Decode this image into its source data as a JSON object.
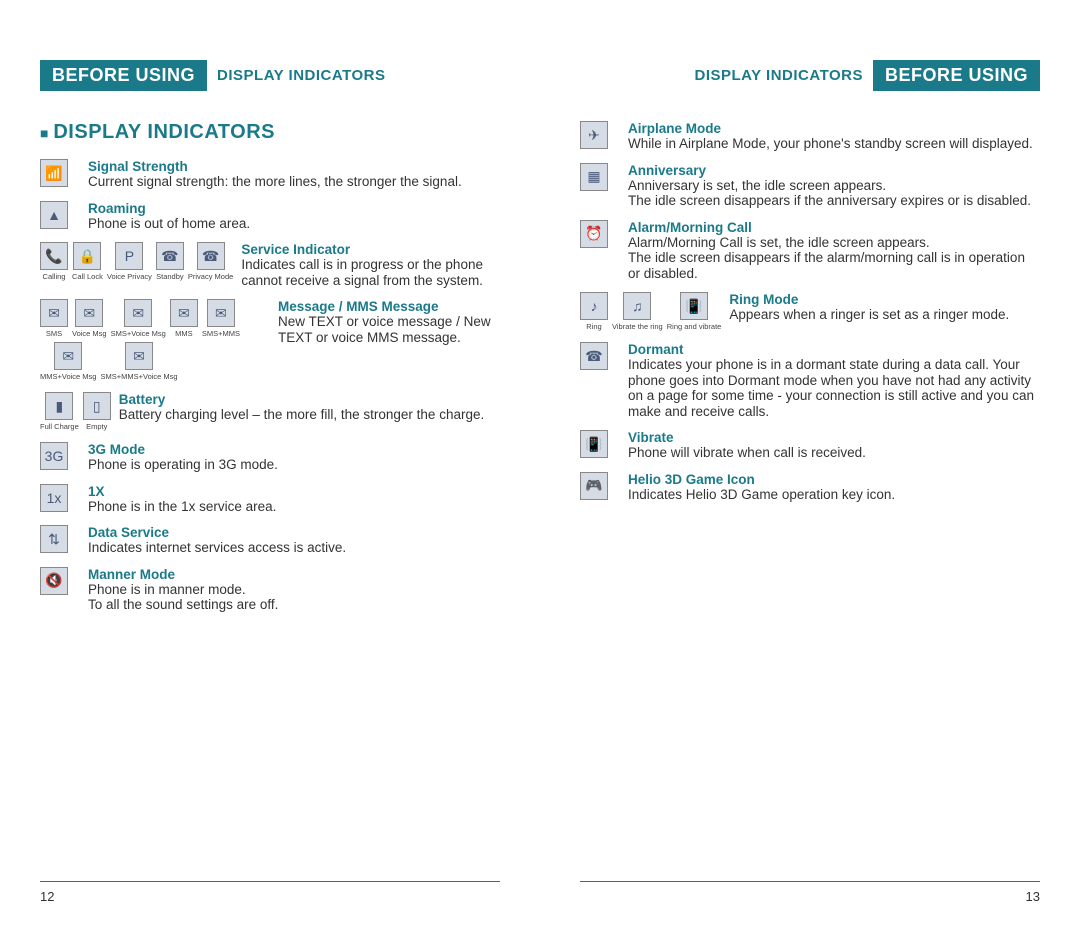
{
  "left": {
    "header_tag": "BEFORE USING",
    "header_sub": "DISPLAY INDICATORS",
    "section_title": "DISPLAY INDICATORS",
    "page_num": "12",
    "indicators": [
      {
        "title": "Signal Strength",
        "desc": "Current signal strength: the more lines, the stronger the signal.",
        "icons": [
          {
            "sym": "📶",
            "cap": ""
          }
        ]
      },
      {
        "title": "Roaming",
        "desc": "Phone is out of home area.",
        "icons": [
          {
            "sym": "▲",
            "cap": ""
          }
        ]
      },
      {
        "title": "Service Indicator",
        "desc": "Indicates call is in progress or the phone cannot receive a signal from the system.",
        "icons": [
          {
            "sym": "📞",
            "cap": "Calling"
          },
          {
            "sym": "🔒",
            "cap": "Call Lock"
          },
          {
            "sym": "P",
            "cap": "Voice Privacy"
          },
          {
            "sym": "☎",
            "cap": "Standby"
          },
          {
            "sym": "☎",
            "cap": "Privacy Mode"
          }
        ],
        "icon_rows": 2
      },
      {
        "title": "Message / MMS Message",
        "desc": "New TEXT or voice message / New TEXT or voice MMS message.",
        "icons": [
          {
            "sym": "✉",
            "cap": "SMS"
          },
          {
            "sym": "✉",
            "cap": "Voice Msg"
          },
          {
            "sym": "✉",
            "cap": "SMS+Voice Msg"
          },
          {
            "sym": "✉",
            "cap": "MMS"
          },
          {
            "sym": "✉",
            "cap": "SMS+MMS"
          },
          {
            "sym": "✉",
            "cap": "MMS+Voice Msg"
          },
          {
            "sym": "✉",
            "cap": "SMS+MMS+Voice Msg"
          }
        ],
        "icon_rows": 2
      },
      {
        "title": "Battery",
        "desc": "Battery charging level – the more fill, the stronger the charge.",
        "icons": [
          {
            "sym": "▮",
            "cap": "Full Charge"
          },
          {
            "sym": "▯",
            "cap": "Empty"
          }
        ]
      },
      {
        "title": "3G Mode",
        "desc": "Phone is operating in 3G mode.",
        "icons": [
          {
            "sym": "3G",
            "cap": ""
          }
        ]
      },
      {
        "title": "1X",
        "desc": "Phone is in the 1x service area.",
        "icons": [
          {
            "sym": "1x",
            "cap": ""
          }
        ]
      },
      {
        "title": "Data Service",
        "desc": "Indicates internet services access is active.",
        "icons": [
          {
            "sym": "⇅",
            "cap": ""
          }
        ]
      },
      {
        "title": "Manner Mode",
        "desc": "Phone is in manner mode.\nTo all the sound settings are off.",
        "icons": [
          {
            "sym": "🔇",
            "cap": ""
          }
        ]
      }
    ]
  },
  "right": {
    "header_tag": "BEFORE USING",
    "header_sub": "DISPLAY INDICATORS",
    "page_num": "13",
    "indicators": [
      {
        "title": "Airplane Mode",
        "desc": "While in Airplane Mode, your phone's standby screen will displayed.",
        "icons": [
          {
            "sym": "✈",
            "cap": ""
          }
        ]
      },
      {
        "title": "Anniversary",
        "desc": "Anniversary is set, the idle screen appears.\nThe idle screen disappears if the anniversary expires or is disabled.",
        "icons": [
          {
            "sym": "▦",
            "cap": ""
          }
        ]
      },
      {
        "title": "Alarm/Morning Call",
        "desc": "Alarm/Morning Call is set, the idle screen appears.\nThe idle screen disappears if the alarm/morning call is in operation or disabled.",
        "icons": [
          {
            "sym": "⏰",
            "cap": ""
          }
        ]
      },
      {
        "title": "Ring Mode",
        "desc": "Appears when a ringer is set as a ringer mode.",
        "icons": [
          {
            "sym": "♪",
            "cap": "Ring"
          },
          {
            "sym": "♫",
            "cap": "Vibrate the ring"
          },
          {
            "sym": "📳",
            "cap": "Ring and vibrate"
          }
        ]
      },
      {
        "title": "Dormant",
        "desc": "Indicates your phone is in a dormant state during a data call. Your phone goes into Dormant mode when you have not had any activity on a page for some time - your connection is still active and you can make and receive calls.",
        "icons": [
          {
            "sym": "☎",
            "cap": ""
          }
        ]
      },
      {
        "title": "Vibrate",
        "desc": "Phone will vibrate when call is received.",
        "icons": [
          {
            "sym": "📳",
            "cap": ""
          }
        ]
      },
      {
        "title": "Helio 3D Game Icon",
        "desc": "Indicates Helio 3D Game operation key icon.",
        "icons": [
          {
            "sym": "🎮",
            "cap": ""
          }
        ]
      }
    ]
  }
}
